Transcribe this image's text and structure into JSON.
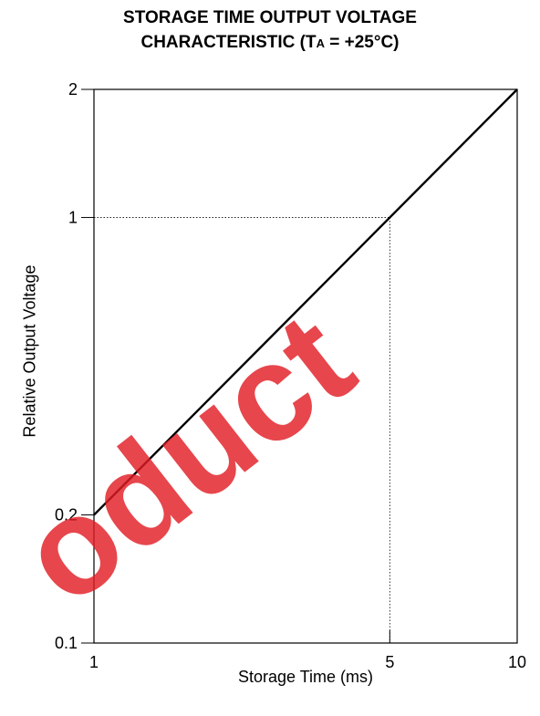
{
  "title_line1": "STORAGE TIME OUTPUT VOLTAGE",
  "title_line2_prefix": "CHARACTERISTIC (T",
  "title_line2_sub": "A",
  "title_line2_suffix": " = +25°C)",
  "watermark_text": "oduct",
  "colors": {
    "line": "#000000",
    "watermark": "#e21c24"
  },
  "chart_data": {
    "type": "line",
    "title": "STORAGE TIME OUTPUT VOLTAGE CHARACTERISTIC (TA = +25°C)",
    "xlabel": "Storage Time (ms)",
    "ylabel": "Relative Output Voltage",
    "xscale": "log",
    "yscale": "log",
    "xlim": [
      1,
      10
    ],
    "ylim": [
      0.1,
      2
    ],
    "xticks": [
      1,
      5,
      10
    ],
    "xtick_labels": [
      "1",
      "5",
      "10"
    ],
    "yticks": [
      0.1,
      0.2,
      1,
      2
    ],
    "ytick_labels": [
      "0.1",
      "0.2",
      "1",
      "2"
    ],
    "grid": false,
    "series": [
      {
        "x": [
          1,
          10
        ],
        "y": [
          0.2,
          2
        ]
      }
    ],
    "reference_lines": [
      {
        "type": "dotted",
        "x": 5,
        "y": 1
      }
    ]
  }
}
